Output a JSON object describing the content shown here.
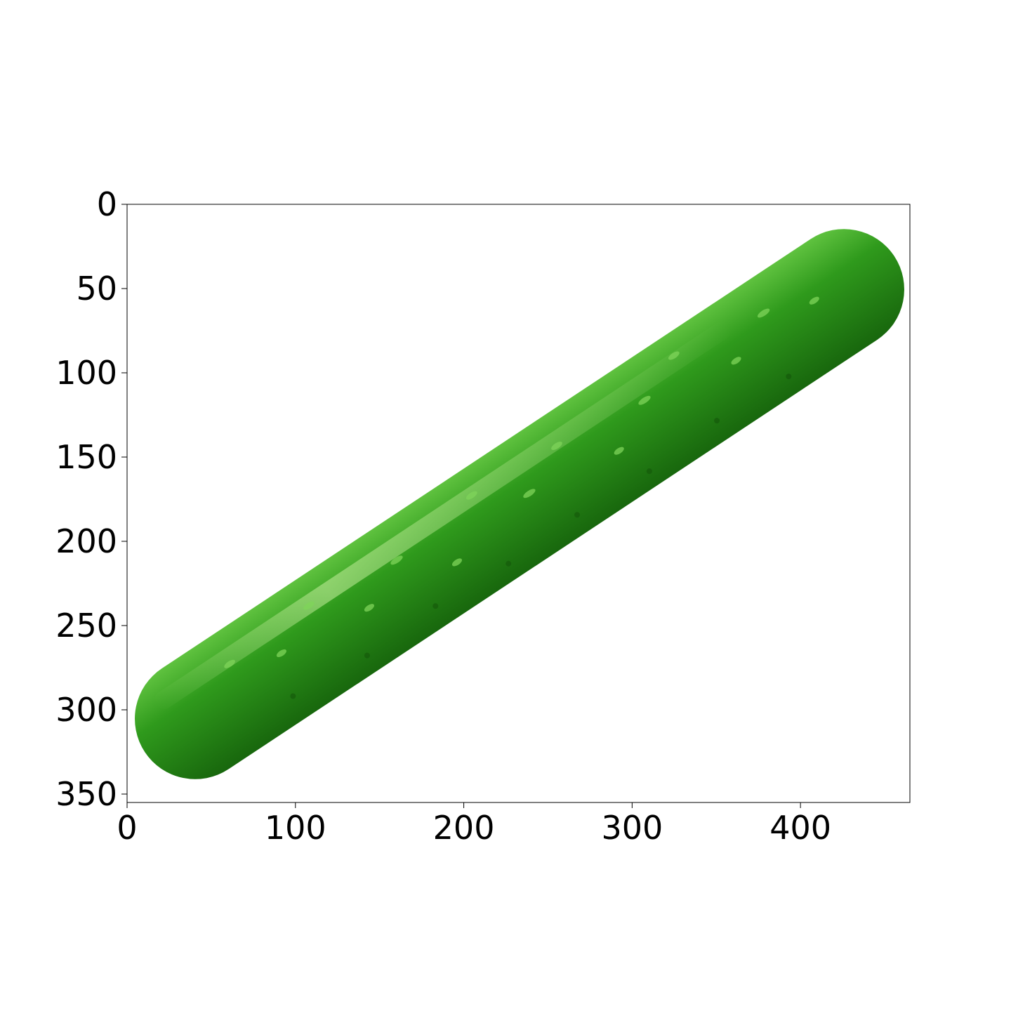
{
  "chart_data": {
    "type": "image",
    "image_subject": "cucumber",
    "xlim": [
      0,
      465
    ],
    "ylim": [
      355,
      0
    ],
    "x_ticks": [
      0,
      100,
      200,
      300,
      400
    ],
    "y_ticks": [
      0,
      50,
      100,
      150,
      200,
      250,
      300,
      350
    ],
    "x_tick_labels": [
      "0",
      "100",
      "200",
      "300",
      "400"
    ],
    "y_tick_labels": [
      "0",
      "50",
      "100",
      "150",
      "200",
      "250",
      "300",
      "350"
    ],
    "grid": false,
    "colors": {
      "cucumber_dark": "#1f7a12",
      "cucumber_mid": "#2f9a1c",
      "cucumber_light": "#7fd45a",
      "axis": "#000000",
      "background": "#ffffff"
    }
  }
}
